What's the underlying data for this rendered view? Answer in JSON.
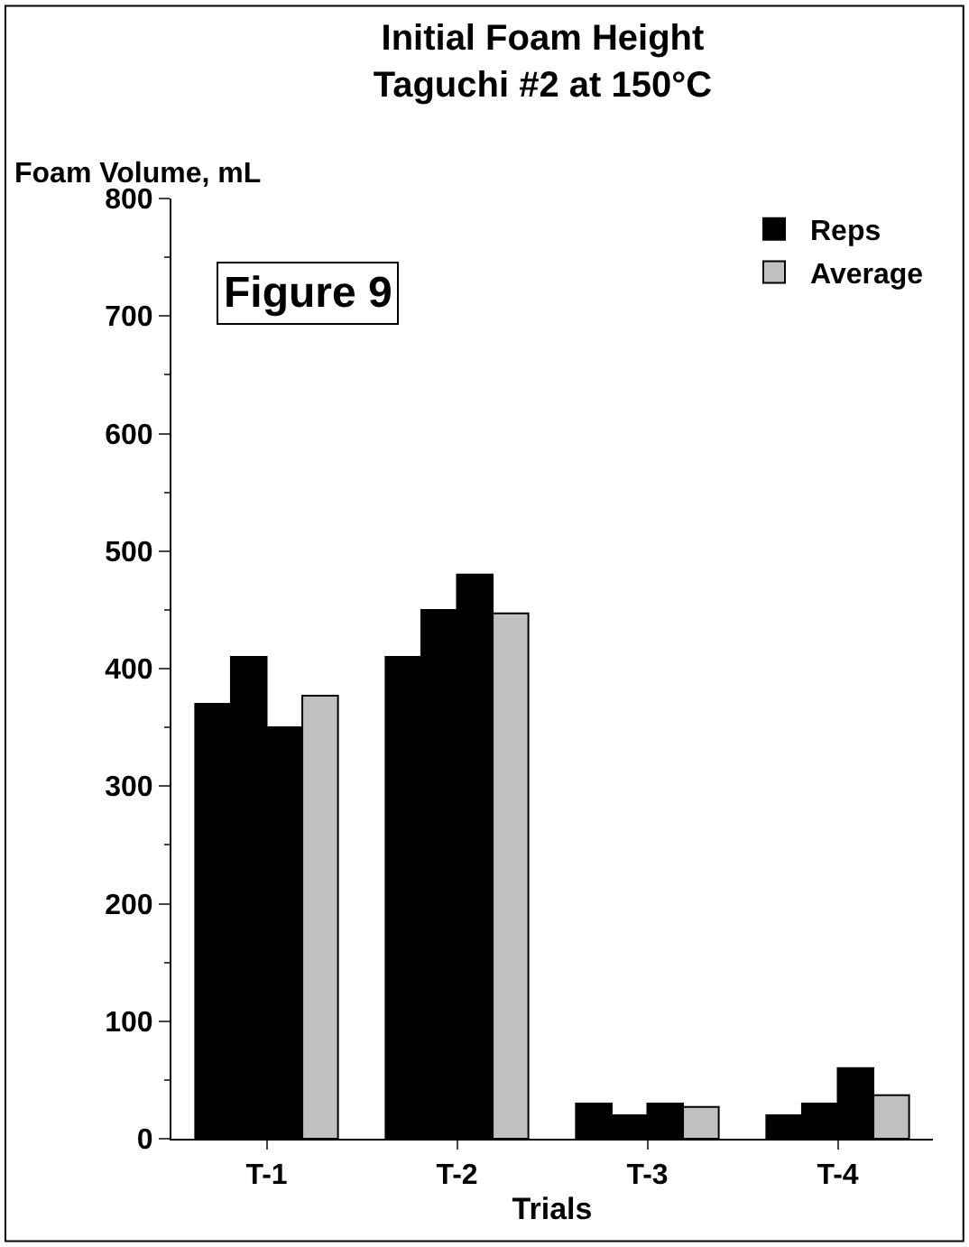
{
  "chart_data": {
    "type": "bar",
    "title": "Initial Foam Height\nTaguchi #2 at 150°C",
    "ylabel": "Foam Volume, mL",
    "xlabel": "Trials",
    "categories": [
      "T-1",
      "T-2",
      "T-3",
      "T-4"
    ],
    "series": [
      {
        "name": "Reps",
        "color": "#000000",
        "values": [
          370,
          410,
          30,
          20
        ]
      },
      {
        "color": "#000000",
        "values": [
          410,
          450,
          20,
          30
        ]
      },
      {
        "color": "#000000",
        "values": [
          350,
          480,
          30,
          60
        ]
      },
      {
        "name": "Average",
        "color": "#c0c0c0",
        "values": [
          377,
          447,
          27,
          37
        ]
      }
    ],
    "ylim": [
      0,
      800
    ],
    "yticks": [
      0,
      100,
      200,
      300,
      400,
      500,
      600,
      700,
      800
    ],
    "annotations": [
      "Figure 9"
    ],
    "legend": "top right"
  }
}
